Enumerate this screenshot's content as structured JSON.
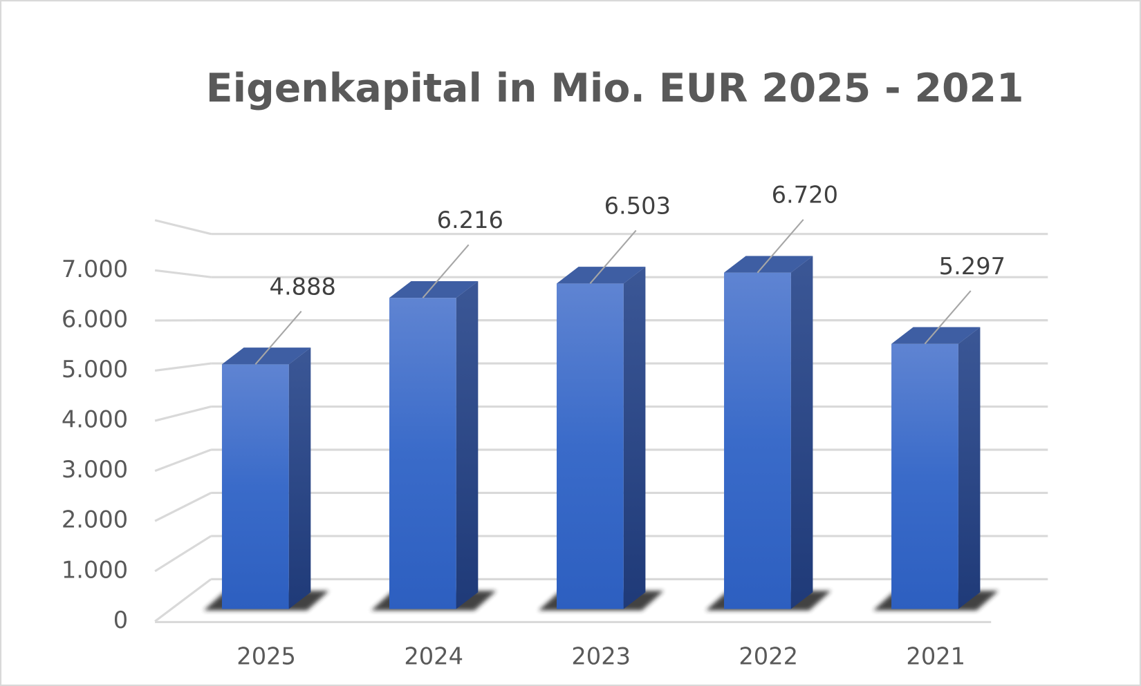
{
  "chart_data": {
    "type": "bar3d",
    "title": "Eigenkapital in Mio. EUR  2025 - 2021",
    "categories": [
      "2025",
      "2024",
      "2023",
      "2022",
      "2021"
    ],
    "values": [
      4888,
      6216,
      6503,
      6720,
      5297
    ],
    "value_labels": [
      "4.888",
      "6.216",
      "6.503",
      "6.720",
      "5.297"
    ],
    "color": "#3a6bc9",
    "ylim": [
      0,
      8000
    ],
    "yticks": [
      0,
      {
        "value": 1000,
        "label": "1.000"
      },
      {
        "value": 2000,
        "label": "2.000"
      },
      {
        "value": 3000,
        "label": "3.000"
      },
      {
        "value": 4000,
        "label": "4.000"
      },
      {
        "value": 5000,
        "label": "5.000"
      },
      {
        "value": 6000,
        "label": "6.000"
      },
      {
        "value": 7000,
        "label": "7.000"
      }
    ],
    "grid": true
  }
}
